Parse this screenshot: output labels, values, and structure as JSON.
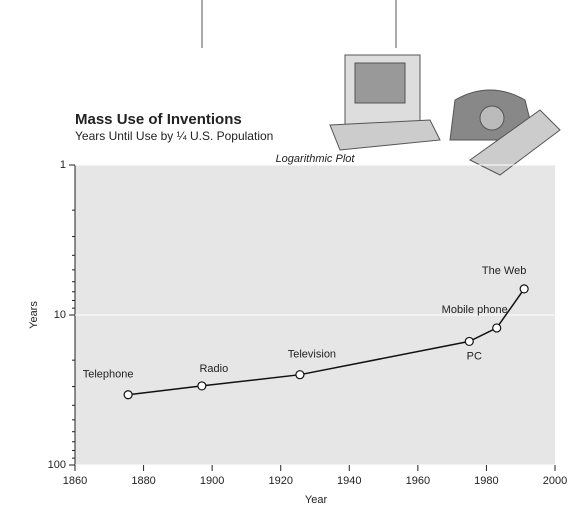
{
  "chart_data": {
    "type": "line",
    "title": "Mass Use of Inventions",
    "subtitle": "Years Until Use by ¼ U.S. Population",
    "annotation": "Logarithmic Plot",
    "x_label": "Year",
    "y_label": "Years",
    "x": [
      1875.5,
      1897,
      1925.6,
      1975,
      1983,
      1991
    ],
    "values": [
      34,
      29.7,
      25,
      15,
      12.2,
      6.7
    ],
    "point_labels": [
      "Telephone",
      "Radio",
      "Television",
      "PC",
      "Mobile phone",
      "The Web"
    ],
    "color": "#111111",
    "xlim": [
      1860,
      2000
    ],
    "xticks": [
      1860,
      1880,
      1900,
      1920,
      1940,
      1960,
      1980,
      2000
    ],
    "ylim": [
      1,
      100
    ],
    "yticks": [
      1,
      10,
      100
    ],
    "y_log": true,
    "y_inverted": true
  }
}
